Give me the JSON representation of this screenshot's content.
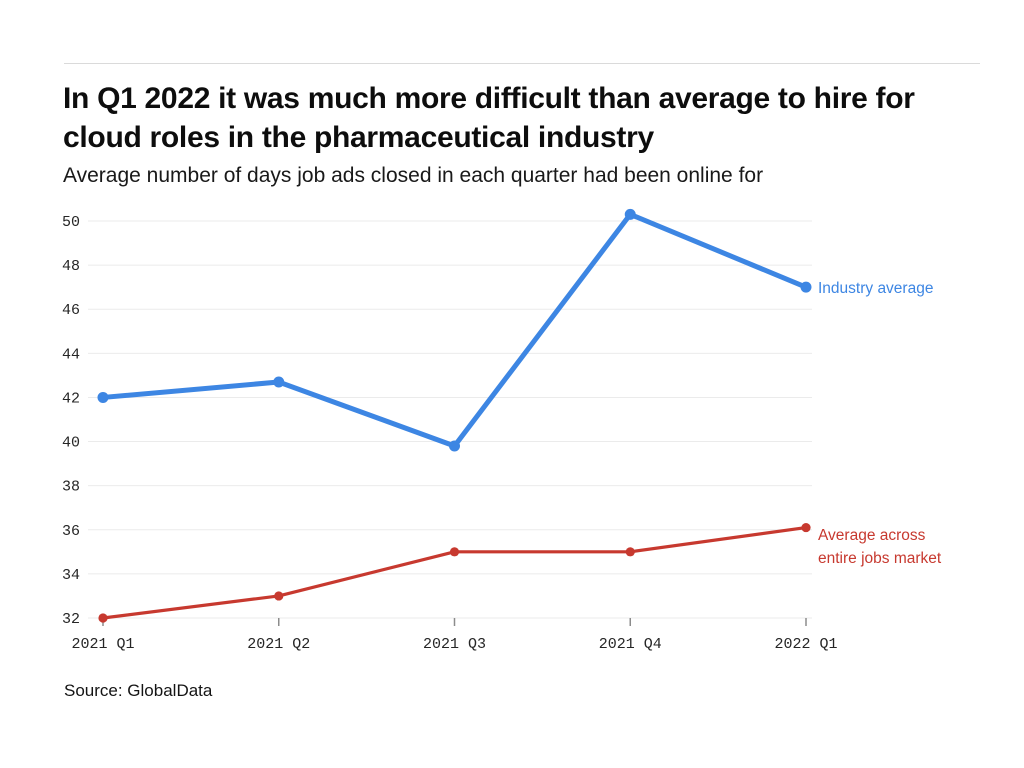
{
  "header": {
    "title": "In Q1 2022 it was much more difficult than average to hire for cloud roles in the pharmaceutical industry",
    "subtitle": "Average number of days job ads closed in each quarter had been online for"
  },
  "chart_data": {
    "type": "line",
    "title": "In Q1 2022 it was much more difficult than average to hire for cloud roles in the pharmaceutical industry",
    "subtitle": "Average number of days job ads closed in each quarter had been online for",
    "categories": [
      "2021 Q1",
      "2021 Q2",
      "2021 Q3",
      "2021 Q4",
      "2022 Q1"
    ],
    "series": [
      {
        "name": "Industry average",
        "label": "Industry average",
        "values": [
          42.0,
          42.7,
          39.8,
          50.3,
          47.0
        ],
        "color": "#3d86e3",
        "line_width": 5,
        "point_radius": 5.5
      },
      {
        "name": "Average across entire jobs market",
        "label": "Average across entire jobs market",
        "values": [
          32.0,
          33.0,
          35.0,
          35.0,
          36.1
        ],
        "color": "#c7392f",
        "line_width": 3.2,
        "point_radius": 4.6
      }
    ],
    "xlabel": "",
    "ylabel": "",
    "ylim": [
      32,
      50
    ],
    "ytick_step": 2,
    "grid": "horizontal-only",
    "grid_color": "#ebebeb",
    "tick_color": "#8c8c8c",
    "tick_label_color": "#262626",
    "legend_position": "right-of-last-point"
  },
  "footer": {
    "source": "Source: GlobalData"
  }
}
